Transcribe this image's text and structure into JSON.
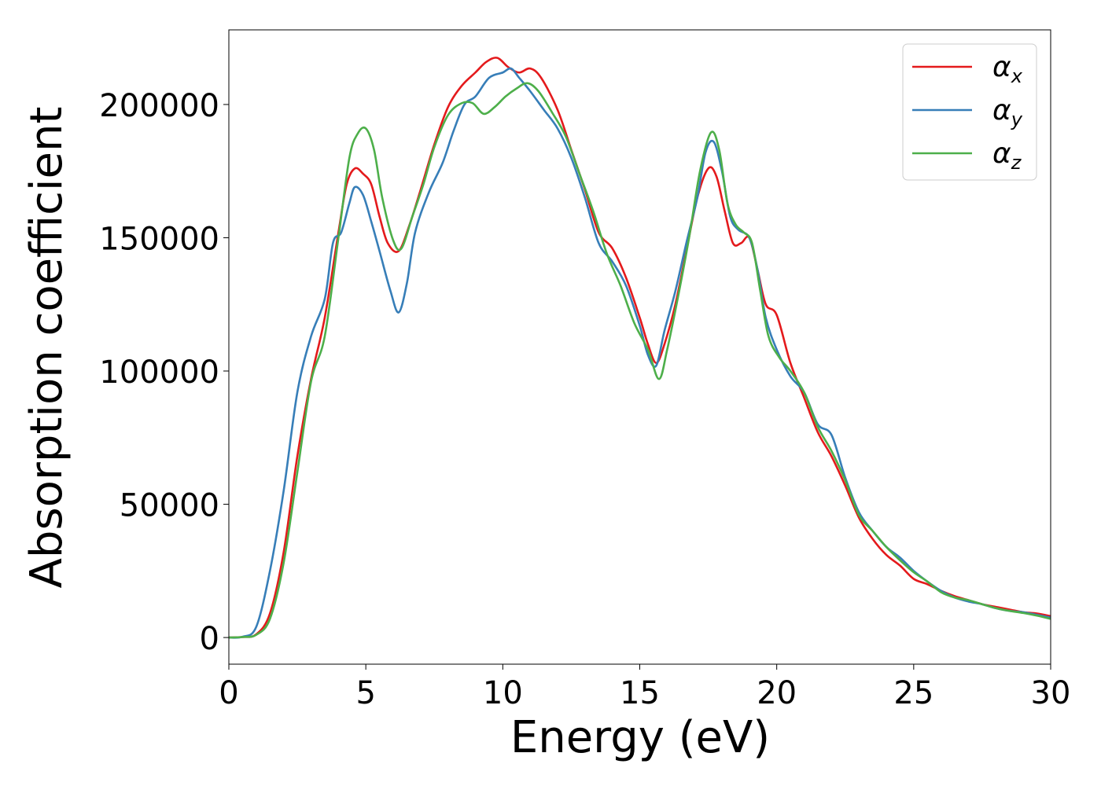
{
  "chart_data": {
    "type": "line",
    "title": "",
    "xlabel": "Energy (eV)",
    "ylabel": "Absorption coefficient",
    "xlim": [
      0,
      30
    ],
    "ylim": [
      -10000,
      228000
    ],
    "xticks": [
      0,
      5,
      10,
      15,
      20,
      25,
      30
    ],
    "yticks": [
      0,
      50000,
      100000,
      150000,
      200000
    ],
    "xtick_labels": [
      "0",
      "5",
      "10",
      "15",
      "20",
      "25",
      "30"
    ],
    "ytick_labels": [
      "0",
      "50000",
      "100000",
      "150000",
      "200000"
    ],
    "grid": false,
    "legend_position": "top-right",
    "series": [
      {
        "name": "α",
        "subscript": "x",
        "color": "#e41a1c",
        "points": [
          [
            0,
            0
          ],
          [
            0.5,
            200
          ],
          [
            1,
            1200
          ],
          [
            1.5,
            9000
          ],
          [
            2,
            32000
          ],
          [
            2.5,
            68000
          ],
          [
            3,
            97000
          ],
          [
            3.5,
            120000
          ],
          [
            4,
            152000
          ],
          [
            4.3,
            170000
          ],
          [
            4.6,
            176000
          ],
          [
            4.9,
            174000
          ],
          [
            5.2,
            170000
          ],
          [
            5.5,
            158000
          ],
          [
            5.8,
            148000
          ],
          [
            6.2,
            145000
          ],
          [
            6.6,
            155000
          ],
          [
            7,
            168000
          ],
          [
            7.5,
            185000
          ],
          [
            8,
            199000
          ],
          [
            8.5,
            207000
          ],
          [
            9,
            212000
          ],
          [
            9.4,
            216000
          ],
          [
            9.8,
            217500
          ],
          [
            10.2,
            214000
          ],
          [
            10.6,
            212000
          ],
          [
            11,
            213500
          ],
          [
            11.4,
            210000
          ],
          [
            12,
            198000
          ],
          [
            12.5,
            183000
          ],
          [
            13,
            168000
          ],
          [
            13.5,
            152000
          ],
          [
            14,
            146000
          ],
          [
            14.5,
            135000
          ],
          [
            15,
            120000
          ],
          [
            15.3,
            110000
          ],
          [
            15.6,
            103000
          ],
          [
            15.9,
            110000
          ],
          [
            16.3,
            125000
          ],
          [
            16.7,
            145000
          ],
          [
            17.1,
            165000
          ],
          [
            17.5,
            176000
          ],
          [
            17.8,
            173000
          ],
          [
            18.1,
            160000
          ],
          [
            18.4,
            148000
          ],
          [
            18.7,
            148000
          ],
          [
            19,
            150000
          ],
          [
            19.3,
            138000
          ],
          [
            19.6,
            125000
          ],
          [
            20,
            121000
          ],
          [
            20.5,
            103000
          ],
          [
            21,
            90000
          ],
          [
            21.5,
            77000
          ],
          [
            22,
            68000
          ],
          [
            22.5,
            57000
          ],
          [
            23,
            45000
          ],
          [
            23.5,
            37000
          ],
          [
            24,
            31000
          ],
          [
            24.5,
            27000
          ],
          [
            25,
            22000
          ],
          [
            25.5,
            20000
          ],
          [
            26,
            17500
          ],
          [
            26.5,
            15500
          ],
          [
            27,
            14000
          ],
          [
            27.5,
            12500
          ],
          [
            28,
            11500
          ],
          [
            28.5,
            10500
          ],
          [
            29,
            9500
          ],
          [
            29.5,
            9000
          ],
          [
            30,
            8000
          ]
        ]
      },
      {
        "name": "α",
        "subscript": "y",
        "color": "#377eb8",
        "points": [
          [
            0,
            0
          ],
          [
            0.5,
            300
          ],
          [
            1,
            4000
          ],
          [
            1.5,
            25000
          ],
          [
            2,
            55000
          ],
          [
            2.5,
            92000
          ],
          [
            3,
            113000
          ],
          [
            3.5,
            127000
          ],
          [
            3.8,
            148000
          ],
          [
            4.1,
            152000
          ],
          [
            4.4,
            163000
          ],
          [
            4.6,
            169000
          ],
          [
            4.9,
            166000
          ],
          [
            5.2,
            156000
          ],
          [
            5.5,
            145000
          ],
          [
            5.9,
            130000
          ],
          [
            6.2,
            122000
          ],
          [
            6.5,
            133000
          ],
          [
            6.8,
            152000
          ],
          [
            7.3,
            167000
          ],
          [
            7.8,
            178000
          ],
          [
            8.2,
            190000
          ],
          [
            8.6,
            200000
          ],
          [
            9,
            203000
          ],
          [
            9.5,
            210000
          ],
          [
            10,
            212000
          ],
          [
            10.3,
            213500
          ],
          [
            10.6,
            210000
          ],
          [
            11,
            205000
          ],
          [
            11.5,
            198000
          ],
          [
            12,
            191000
          ],
          [
            12.5,
            180000
          ],
          [
            13,
            165000
          ],
          [
            13.5,
            148000
          ],
          [
            14,
            141000
          ],
          [
            14.5,
            132000
          ],
          [
            15,
            117000
          ],
          [
            15.3,
            106000
          ],
          [
            15.6,
            102000
          ],
          [
            15.9,
            115000
          ],
          [
            16.3,
            130000
          ],
          [
            16.7,
            148000
          ],
          [
            17.1,
            165000
          ],
          [
            17.4,
            182000
          ],
          [
            17.7,
            186000
          ],
          [
            18,
            175000
          ],
          [
            18.3,
            158000
          ],
          [
            18.6,
            153000
          ],
          [
            19,
            150000
          ],
          [
            19.3,
            138000
          ],
          [
            19.6,
            120000
          ],
          [
            20,
            108000
          ],
          [
            20.5,
            98000
          ],
          [
            21,
            92000
          ],
          [
            21.5,
            80000
          ],
          [
            22,
            76000
          ],
          [
            22.5,
            60000
          ],
          [
            23,
            47000
          ],
          [
            23.5,
            40000
          ],
          [
            24,
            34000
          ],
          [
            24.5,
            30000
          ],
          [
            25,
            25000
          ],
          [
            25.5,
            21000
          ],
          [
            26,
            17500
          ],
          [
            26.5,
            15000
          ],
          [
            27,
            13500
          ],
          [
            27.5,
            12500
          ],
          [
            28,
            11000
          ],
          [
            28.5,
            10000
          ],
          [
            29,
            9500
          ],
          [
            29.5,
            8500
          ],
          [
            30,
            7500
          ]
        ]
      },
      {
        "name": "α",
        "subscript": "z",
        "color": "#4daf4a",
        "points": [
          [
            0,
            0
          ],
          [
            0.5,
            200
          ],
          [
            1,
            1000
          ],
          [
            1.5,
            7000
          ],
          [
            2,
            28000
          ],
          [
            2.5,
            62000
          ],
          [
            3,
            96000
          ],
          [
            3.5,
            113000
          ],
          [
            4,
            150000
          ],
          [
            4.4,
            180000
          ],
          [
            4.7,
            189000
          ],
          [
            5,
            191000
          ],
          [
            5.3,
            183000
          ],
          [
            5.6,
            165000
          ],
          [
            6,
            149000
          ],
          [
            6.3,
            146000
          ],
          [
            6.7,
            158000
          ],
          [
            7.1,
            170000
          ],
          [
            7.5,
            184000
          ],
          [
            8,
            196000
          ],
          [
            8.5,
            200500
          ],
          [
            8.9,
            200500
          ],
          [
            9.3,
            196500
          ],
          [
            9.7,
            199000
          ],
          [
            10.1,
            203000
          ],
          [
            10.5,
            206000
          ],
          [
            10.9,
            208000
          ],
          [
            11.3,
            205000
          ],
          [
            11.8,
            197000
          ],
          [
            12.3,
            188000
          ],
          [
            12.8,
            174000
          ],
          [
            13.3,
            160000
          ],
          [
            13.8,
            144000
          ],
          [
            14.3,
            132000
          ],
          [
            14.8,
            118000
          ],
          [
            15.3,
            108000
          ],
          [
            15.7,
            97000
          ],
          [
            16,
            108000
          ],
          [
            16.4,
            128000
          ],
          [
            16.8,
            150000
          ],
          [
            17.2,
            175000
          ],
          [
            17.6,
            189500
          ],
          [
            17.9,
            183000
          ],
          [
            18.2,
            163000
          ],
          [
            18.5,
            155000
          ],
          [
            18.8,
            152000
          ],
          [
            19.1,
            148000
          ],
          [
            19.4,
            130000
          ],
          [
            19.7,
            113000
          ],
          [
            20.1,
            105000
          ],
          [
            20.5,
            100000
          ],
          [
            21,
            92000
          ],
          [
            21.5,
            79000
          ],
          [
            22,
            70000
          ],
          [
            22.5,
            59000
          ],
          [
            23,
            46000
          ],
          [
            23.5,
            40000
          ],
          [
            24,
            34000
          ],
          [
            24.5,
            29000
          ],
          [
            25,
            24500
          ],
          [
            25.5,
            21000
          ],
          [
            26,
            17000
          ],
          [
            26.5,
            15000
          ],
          [
            27,
            14000
          ],
          [
            27.5,
            12500
          ],
          [
            28,
            11000
          ],
          [
            28.5,
            10000
          ],
          [
            29,
            9200
          ],
          [
            29.5,
            8200
          ],
          [
            30,
            7000
          ]
        ]
      }
    ]
  }
}
